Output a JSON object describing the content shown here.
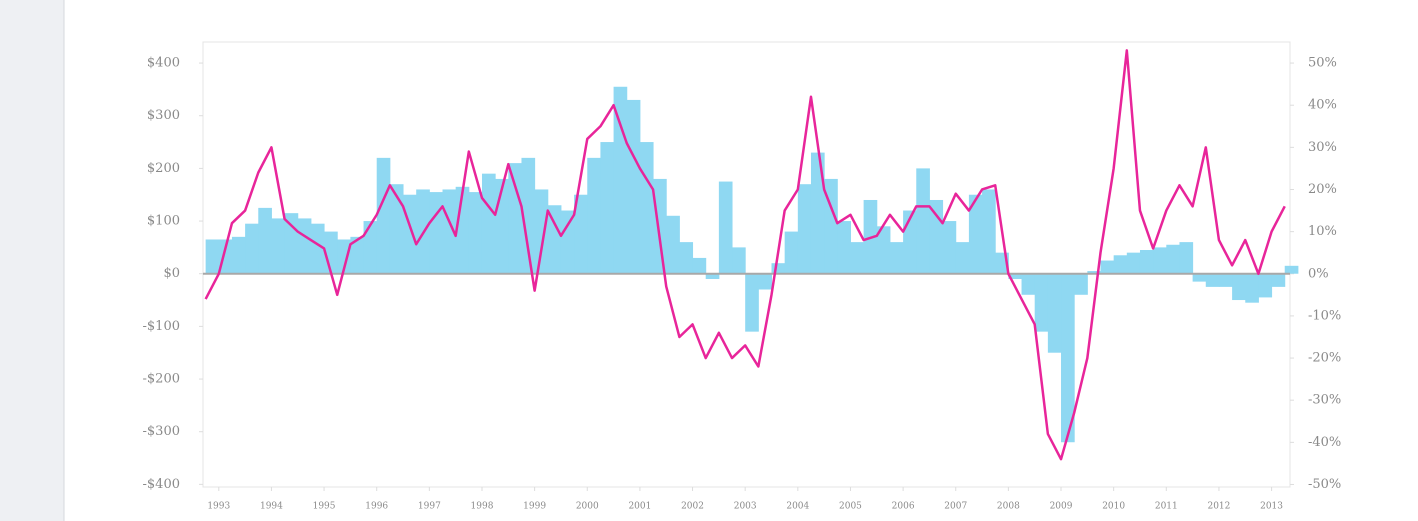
{
  "chart_data": {
    "type": "bar-line",
    "x": [
      1992.75,
      1993,
      1993.25,
      1993.5,
      1993.75,
      1994,
      1994.25,
      1994.5,
      1994.75,
      1995,
      1995.25,
      1995.5,
      1995.75,
      1996,
      1996.25,
      1996.5,
      1996.75,
      1997,
      1997.25,
      1997.5,
      1997.75,
      1998,
      1998.25,
      1998.5,
      1998.75,
      1999,
      1999.25,
      1999.5,
      1999.75,
      2000,
      2000.25,
      2000.5,
      2000.75,
      2001,
      2001.25,
      2001.5,
      2001.75,
      2002,
      2002.25,
      2002.5,
      2002.75,
      2003,
      2003.25,
      2003.5,
      2003.75,
      2004,
      2004.25,
      2004.5,
      2004.75,
      2005,
      2005.25,
      2005.5,
      2005.75,
      2006,
      2006.25,
      2006.5,
      2006.75,
      2007,
      2007.25,
      2007.5,
      2007.75,
      2008,
      2008.25,
      2008.5,
      2008.75,
      2009,
      2009.25,
      2009.5,
      2009.75,
      2010,
      2010.25,
      2010.5,
      2010.75,
      2011,
      2011.25,
      2011.5,
      2011.75,
      2012,
      2012.25,
      2012.5,
      2012.75,
      2013,
      2013.25
    ],
    "series": [
      {
        "type": "bar",
        "axis": "y",
        "color": "#8fd8f2",
        "values": [
          65,
          65,
          70,
          95,
          125,
          105,
          115,
          105,
          95,
          80,
          65,
          70,
          100,
          220,
          170,
          150,
          160,
          155,
          160,
          165,
          155,
          190,
          180,
          210,
          220,
          160,
          130,
          120,
          150,
          220,
          250,
          355,
          330,
          250,
          180,
          110,
          60,
          30,
          -10,
          175,
          50,
          -110,
          -30,
          20,
          80,
          170,
          230,
          180,
          100,
          60,
          140,
          90,
          60,
          120,
          200,
          140,
          100,
          60,
          150,
          160,
          40,
          -10,
          -40,
          -110,
          -150,
          -320,
          -40,
          5,
          25,
          35,
          40,
          45,
          50,
          55,
          60,
          -15,
          -25,
          -25,
          -50,
          -55,
          -45,
          -25,
          15
        ]
      },
      {
        "type": "line",
        "axis": "y2",
        "color": "#e8259a",
        "values": [
          -6,
          0,
          12,
          15,
          24,
          30,
          13,
          10,
          8,
          6,
          -5,
          7,
          9,
          14,
          21,
          16,
          7,
          12,
          16,
          9,
          29,
          18,
          14,
          26,
          16,
          -4,
          15,
          9,
          14,
          32,
          35,
          40,
          31,
          25,
          20,
          -3,
          -15,
          -12,
          -20,
          -14,
          -20,
          -17,
          -22,
          -5,
          15,
          20,
          42,
          20,
          12,
          14,
          8,
          9,
          14,
          10,
          16,
          16,
          12,
          19,
          15,
          20,
          21,
          0,
          -6,
          -12,
          -38,
          -44,
          -33,
          -20,
          5,
          25,
          53,
          15,
          6,
          15,
          21,
          16,
          30,
          8,
          2,
          8,
          0,
          10,
          16
        ]
      }
    ],
    "xlim": [
      1992.7,
      2013.35
    ],
    "xticks": [
      1993,
      1994,
      1995,
      1996,
      1997,
      1998,
      1999,
      2000,
      2001,
      2002,
      2003,
      2004,
      2005,
      2006,
      2007,
      2008,
      2009,
      2010,
      2011,
      2012,
      2013
    ],
    "ylim": [
      -405,
      440
    ],
    "yticks": [
      {
        "value": 400,
        "label": "$400"
      },
      {
        "value": 300,
        "label": "$300"
      },
      {
        "value": 200,
        "label": "$200"
      },
      {
        "value": 100,
        "label": "$100"
      },
      {
        "value": 0,
        "label": "$0"
      },
      {
        "value": -100,
        "label": "-$100"
      },
      {
        "value": -200,
        "label": "-$200"
      },
      {
        "value": -300,
        "label": "-$300"
      },
      {
        "value": -400,
        "label": "-$400"
      }
    ],
    "y2lim": [
      -50.6,
      55
    ],
    "y2ticks": [
      {
        "value": 50,
        "label": "50%"
      },
      {
        "value": 40,
        "label": "40%"
      },
      {
        "value": 30,
        "label": "30%"
      },
      {
        "value": 20,
        "label": "20%"
      },
      {
        "value": 10,
        "label": "10%"
      },
      {
        "value": 0,
        "label": "0%"
      },
      {
        "value": -10,
        "label": "-10%"
      },
      {
        "value": -20,
        "label": "-20%"
      },
      {
        "value": -30,
        "label": "-30%"
      },
      {
        "value": -40,
        "label": "-40%"
      },
      {
        "value": -50,
        "label": "-50%"
      }
    ]
  }
}
